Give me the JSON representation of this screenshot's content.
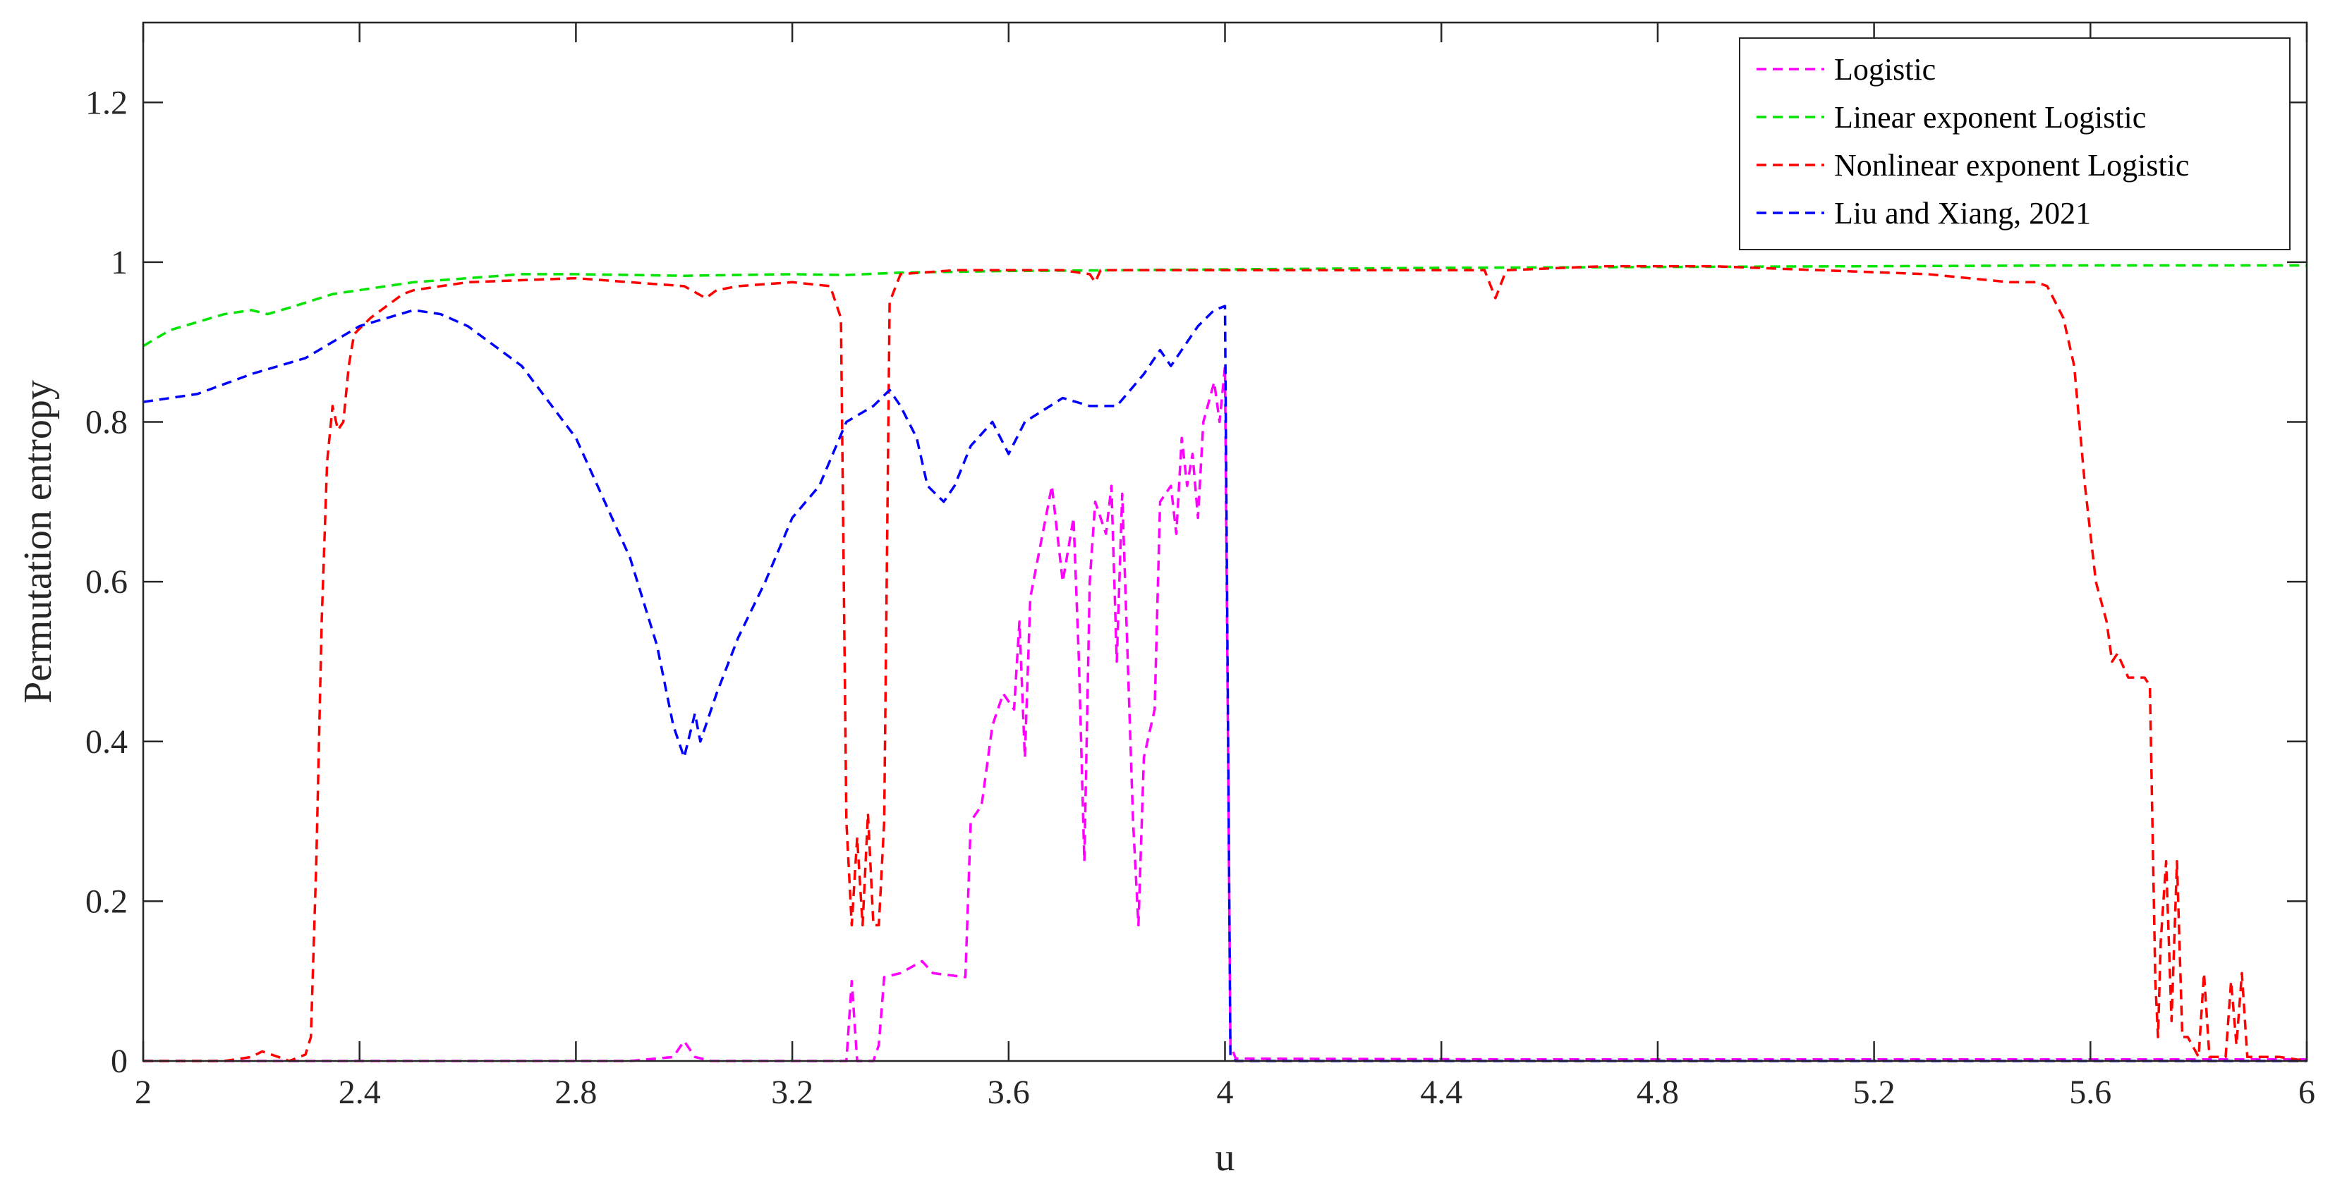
{
  "chart_data": {
    "type": "line",
    "xlabel": "u",
    "ylabel": "Permutation entropy",
    "xlim": [
      2,
      6
    ],
    "ylim": [
      0,
      1.3
    ],
    "x_ticks": [
      {
        "value": 2,
        "label": "2"
      },
      {
        "value": 2.4,
        "label": "2.4"
      },
      {
        "value": 2.8,
        "label": "2.8"
      },
      {
        "value": 3.2,
        "label": "3.2"
      },
      {
        "value": 3.6,
        "label": "3.6"
      },
      {
        "value": 4,
        "label": "4"
      },
      {
        "value": 4.4,
        "label": "4.4"
      },
      {
        "value": 4.8,
        "label": "4.8"
      },
      {
        "value": 5.2,
        "label": "5.2"
      },
      {
        "value": 5.6,
        "label": "5.6"
      },
      {
        "value": 6,
        "label": "6"
      }
    ],
    "y_ticks": [
      {
        "value": 0,
        "label": "0"
      },
      {
        "value": 0.2,
        "label": "0.2"
      },
      {
        "value": 0.4,
        "label": "0.4"
      },
      {
        "value": 0.6,
        "label": "0.6"
      },
      {
        "value": 0.8,
        "label": "0.8"
      },
      {
        "value": 1,
        "label": "1"
      },
      {
        "value": 1.2,
        "label": "1.2"
      }
    ],
    "grid": false,
    "legend_position": "top-right",
    "series": [
      {
        "name": "Logistic",
        "color": "#ff00ff",
        "dash": "dashed",
        "points": [
          [
            2,
            0.0
          ],
          [
            2.5,
            0.0
          ],
          [
            2.9,
            0.0
          ],
          [
            2.98,
            0.005
          ],
          [
            3.0,
            0.025
          ],
          [
            3.02,
            0.005
          ],
          [
            3.05,
            0.0
          ],
          [
            3.3,
            0.0
          ],
          [
            3.31,
            0.1
          ],
          [
            3.32,
            0.0
          ],
          [
            3.35,
            0.0
          ],
          [
            3.36,
            0.02
          ],
          [
            3.37,
            0.105
          ],
          [
            3.4,
            0.11
          ],
          [
            3.44,
            0.125
          ],
          [
            3.46,
            0.11
          ],
          [
            3.52,
            0.105
          ],
          [
            3.53,
            0.3
          ],
          [
            3.55,
            0.32
          ],
          [
            3.57,
            0.42
          ],
          [
            3.59,
            0.46
          ],
          [
            3.61,
            0.44
          ],
          [
            3.62,
            0.55
          ],
          [
            3.63,
            0.38
          ],
          [
            3.64,
            0.58
          ],
          [
            3.66,
            0.65
          ],
          [
            3.68,
            0.72
          ],
          [
            3.7,
            0.6
          ],
          [
            3.72,
            0.68
          ],
          [
            3.73,
            0.5
          ],
          [
            3.74,
            0.25
          ],
          [
            3.75,
            0.6
          ],
          [
            3.76,
            0.7
          ],
          [
            3.78,
            0.66
          ],
          [
            3.79,
            0.72
          ],
          [
            3.8,
            0.5
          ],
          [
            3.81,
            0.71
          ],
          [
            3.83,
            0.3
          ],
          [
            3.84,
            0.17
          ],
          [
            3.85,
            0.38
          ],
          [
            3.87,
            0.44
          ],
          [
            3.88,
            0.7
          ],
          [
            3.9,
            0.72
          ],
          [
            3.91,
            0.66
          ],
          [
            3.92,
            0.78
          ],
          [
            3.93,
            0.72
          ],
          [
            3.94,
            0.76
          ],
          [
            3.95,
            0.68
          ],
          [
            3.96,
            0.8
          ],
          [
            3.98,
            0.85
          ],
          [
            3.99,
            0.8
          ],
          [
            4.0,
            0.87
          ],
          [
            4.01,
            0.02
          ],
          [
            4.02,
            0.003
          ],
          [
            4.5,
            0.002
          ],
          [
            5.0,
            0.002
          ],
          [
            5.5,
            0.002
          ],
          [
            6,
            0.002
          ]
        ]
      },
      {
        "name": "Linear exponent Logistic",
        "color": "#00e400",
        "dash": "dashed",
        "points": [
          [
            2,
            0.895
          ],
          [
            2.05,
            0.915
          ],
          [
            2.1,
            0.925
          ],
          [
            2.15,
            0.935
          ],
          [
            2.2,
            0.94
          ],
          [
            2.23,
            0.935
          ],
          [
            2.28,
            0.945
          ],
          [
            2.35,
            0.96
          ],
          [
            2.45,
            0.97
          ],
          [
            2.5,
            0.975
          ],
          [
            2.6,
            0.98
          ],
          [
            2.7,
            0.985
          ],
          [
            2.8,
            0.985
          ],
          [
            3.0,
            0.983
          ],
          [
            3.2,
            0.985
          ],
          [
            3.3,
            0.984
          ],
          [
            3.4,
            0.987
          ],
          [
            3.6,
            0.989
          ],
          [
            3.8,
            0.99
          ],
          [
            4.0,
            0.991
          ],
          [
            4.4,
            0.993
          ],
          [
            4.8,
            0.994
          ],
          [
            5.2,
            0.995
          ],
          [
            5.6,
            0.996
          ],
          [
            6,
            0.996
          ]
        ]
      },
      {
        "name": "Nonlinear exponent Logistic",
        "color": "#ff0000",
        "dash": "dashed",
        "points": [
          [
            2,
            0.0
          ],
          [
            2.15,
            0.0
          ],
          [
            2.2,
            0.005
          ],
          [
            2.22,
            0.012
          ],
          [
            2.25,
            0.005
          ],
          [
            2.27,
            0.0
          ],
          [
            2.3,
            0.008
          ],
          [
            2.31,
            0.03
          ],
          [
            2.32,
            0.25
          ],
          [
            2.33,
            0.55
          ],
          [
            2.34,
            0.75
          ],
          [
            2.35,
            0.82
          ],
          [
            2.36,
            0.79
          ],
          [
            2.37,
            0.8
          ],
          [
            2.38,
            0.87
          ],
          [
            2.39,
            0.91
          ],
          [
            2.42,
            0.93
          ],
          [
            2.45,
            0.945
          ],
          [
            2.48,
            0.96
          ],
          [
            2.5,
            0.965
          ],
          [
            2.6,
            0.975
          ],
          [
            2.8,
            0.98
          ],
          [
            2.9,
            0.975
          ],
          [
            3.0,
            0.97
          ],
          [
            3.04,
            0.955
          ],
          [
            3.06,
            0.965
          ],
          [
            3.1,
            0.97
          ],
          [
            3.2,
            0.975
          ],
          [
            3.27,
            0.97
          ],
          [
            3.29,
            0.93
          ],
          [
            3.3,
            0.3
          ],
          [
            3.31,
            0.17
          ],
          [
            3.32,
            0.28
          ],
          [
            3.33,
            0.17
          ],
          [
            3.34,
            0.31
          ],
          [
            3.35,
            0.17
          ],
          [
            3.36,
            0.17
          ],
          [
            3.37,
            0.3
          ],
          [
            3.38,
            0.95
          ],
          [
            3.4,
            0.985
          ],
          [
            3.5,
            0.99
          ],
          [
            3.6,
            0.99
          ],
          [
            3.7,
            0.99
          ],
          [
            3.75,
            0.985
          ],
          [
            3.76,
            0.975
          ],
          [
            3.77,
            0.99
          ],
          [
            3.9,
            0.99
          ],
          [
            4.0,
            0.99
          ],
          [
            4.2,
            0.99
          ],
          [
            4.4,
            0.99
          ],
          [
            4.48,
            0.99
          ],
          [
            4.5,
            0.955
          ],
          [
            4.52,
            0.99
          ],
          [
            4.7,
            0.995
          ],
          [
            4.9,
            0.995
          ],
          [
            5.1,
            0.99
          ],
          [
            5.3,
            0.985
          ],
          [
            5.45,
            0.975
          ],
          [
            5.5,
            0.975
          ],
          [
            5.52,
            0.97
          ],
          [
            5.55,
            0.93
          ],
          [
            5.57,
            0.87
          ],
          [
            5.59,
            0.72
          ],
          [
            5.61,
            0.6
          ],
          [
            5.63,
            0.55
          ],
          [
            5.64,
            0.5
          ],
          [
            5.65,
            0.51
          ],
          [
            5.67,
            0.48
          ],
          [
            5.7,
            0.48
          ],
          [
            5.71,
            0.47
          ],
          [
            5.72,
            0.1
          ],
          [
            5.725,
            0.03
          ],
          [
            5.73,
            0.15
          ],
          [
            5.74,
            0.25
          ],
          [
            5.75,
            0.05
          ],
          [
            5.76,
            0.25
          ],
          [
            5.77,
            0.03
          ],
          [
            5.78,
            0.03
          ],
          [
            5.8,
            0.005
          ],
          [
            5.81,
            0.11
          ],
          [
            5.82,
            0.005
          ],
          [
            5.85,
            0.005
          ],
          [
            5.86,
            0.1
          ],
          [
            5.87,
            0.02
          ],
          [
            5.88,
            0.11
          ],
          [
            5.89,
            0.005
          ],
          [
            5.95,
            0.005
          ],
          [
            6,
            0.0
          ]
        ]
      },
      {
        "name": "Liu and Xiang, 2021",
        "color": "#0000ff",
        "dash": "dashed",
        "points": [
          [
            2,
            0.825
          ],
          [
            2.1,
            0.835
          ],
          [
            2.2,
            0.86
          ],
          [
            2.3,
            0.88
          ],
          [
            2.4,
            0.92
          ],
          [
            2.5,
            0.94
          ],
          [
            2.55,
            0.935
          ],
          [
            2.6,
            0.92
          ],
          [
            2.7,
            0.87
          ],
          [
            2.8,
            0.78
          ],
          [
            2.9,
            0.63
          ],
          [
            2.95,
            0.52
          ],
          [
            2.98,
            0.42
          ],
          [
            3.0,
            0.38
          ],
          [
            3.02,
            0.435
          ],
          [
            3.03,
            0.4
          ],
          [
            3.06,
            0.46
          ],
          [
            3.1,
            0.53
          ],
          [
            3.15,
            0.6
          ],
          [
            3.2,
            0.68
          ],
          [
            3.25,
            0.72
          ],
          [
            3.3,
            0.8
          ],
          [
            3.35,
            0.82
          ],
          [
            3.38,
            0.84
          ],
          [
            3.4,
            0.82
          ],
          [
            3.43,
            0.78
          ],
          [
            3.45,
            0.72
          ],
          [
            3.48,
            0.7
          ],
          [
            3.5,
            0.72
          ],
          [
            3.53,
            0.77
          ],
          [
            3.57,
            0.8
          ],
          [
            3.6,
            0.76
          ],
          [
            3.63,
            0.8
          ],
          [
            3.7,
            0.83
          ],
          [
            3.75,
            0.82
          ],
          [
            3.8,
            0.82
          ],
          [
            3.85,
            0.86
          ],
          [
            3.88,
            0.89
          ],
          [
            3.9,
            0.87
          ],
          [
            3.95,
            0.92
          ],
          [
            3.98,
            0.94
          ],
          [
            4.0,
            0.945
          ],
          [
            4.01,
            0.005
          ],
          [
            4.02,
            0.0
          ],
          [
            4.5,
            0.0
          ],
          [
            5.0,
            0.0
          ],
          [
            5.5,
            0.0
          ],
          [
            6,
            0.0
          ]
        ]
      }
    ]
  }
}
